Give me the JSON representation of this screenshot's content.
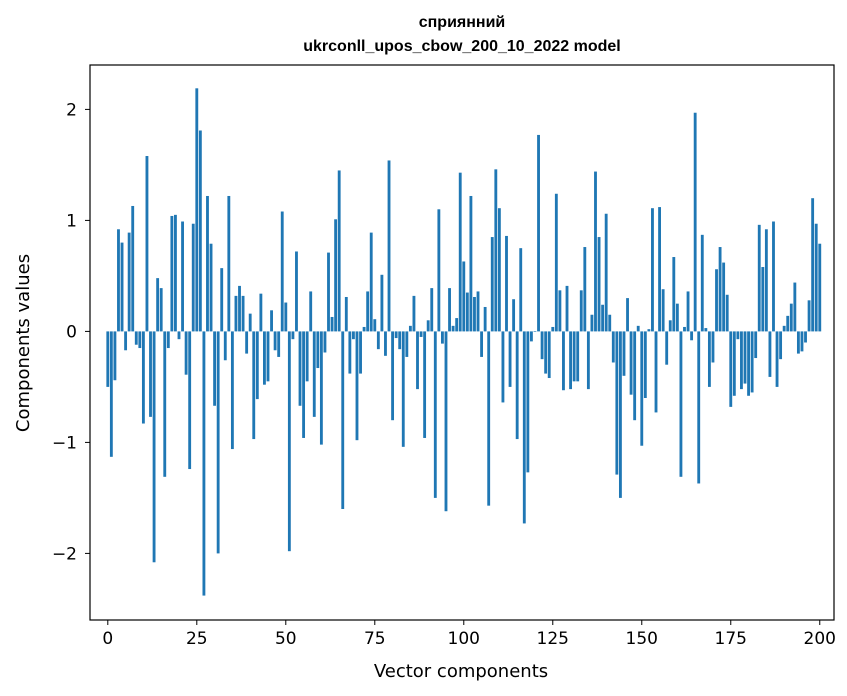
{
  "chart_data": {
    "type": "bar",
    "title": "сприянний",
    "subtitle": "ukrconll_upos_cbow_200_10_2022 model",
    "xlabel": "Vector components",
    "ylabel": "Components values",
    "xlim": [
      -5,
      204
    ],
    "ylim": [
      -2.6,
      2.4
    ],
    "x_ticks": [
      0,
      25,
      50,
      75,
      100,
      125,
      150,
      175,
      200
    ],
    "x_tick_labels": [
      "0",
      "25",
      "50",
      "75",
      "100",
      "125",
      "150",
      "175",
      "200"
    ],
    "y_ticks": [
      -2,
      -1,
      0,
      1,
      2
    ],
    "y_tick_labels": [
      "−2",
      "−1",
      "0",
      "1",
      "2"
    ],
    "grid": false,
    "bar_color": "#1f77b4",
    "values": [
      -0.5,
      -1.13,
      -0.44,
      0.92,
      0.8,
      -0.17,
      0.89,
      1.13,
      -0.12,
      -0.15,
      -0.83,
      1.58,
      -0.77,
      -2.08,
      0.48,
      0.39,
      -1.31,
      -0.15,
      1.04,
      1.05,
      -0.07,
      0.99,
      -0.39,
      -1.24,
      0.97,
      2.19,
      1.81,
      -2.38,
      1.22,
      0.79,
      -0.67,
      -2.0,
      0.57,
      -0.26,
      1.22,
      -1.06,
      0.32,
      0.41,
      0.32,
      -0.2,
      0.16,
      -0.97,
      -0.61,
      0.34,
      -0.48,
      -0.45,
      0.19,
      -0.17,
      -0.23,
      1.08,
      0.26,
      -1.98,
      -0.07,
      0.72,
      -0.67,
      -0.96,
      -0.45,
      0.36,
      -0.77,
      -0.33,
      -1.02,
      -0.19,
      0.71,
      0.13,
      1.01,
      1.45,
      -1.6,
      0.31,
      -0.38,
      -0.07,
      -0.98,
      -0.38,
      0.04,
      0.36,
      0.89,
      0.11,
      -0.16,
      0.51,
      -0.22,
      1.54,
      -0.8,
      -0.06,
      -0.16,
      -1.04,
      -0.23,
      0.05,
      0.32,
      -0.52,
      -0.05,
      -0.96,
      0.1,
      0.39,
      -1.5,
      1.1,
      -0.11,
      -1.62,
      0.39,
      0.05,
      0.12,
      1.43,
      0.63,
      0.35,
      1.22,
      0.31,
      0.36,
      -0.23,
      0.22,
      -1.57,
      0.85,
      1.46,
      1.11,
      -0.64,
      0.86,
      -0.5,
      0.29,
      -0.97,
      0.75,
      -1.73,
      -1.27,
      -0.09,
      0.0,
      1.77,
      -0.25,
      -0.38,
      -0.42,
      0.04,
      1.24,
      0.37,
      -0.53,
      0.41,
      -0.52,
      -0.45,
      -0.45,
      0.37,
      0.76,
      -0.52,
      0.15,
      1.44,
      0.85,
      0.24,
      1.06,
      0.15,
      -0.28,
      -1.29,
      -1.5,
      -0.4,
      0.3,
      -0.57,
      -0.8,
      0.05,
      -1.03,
      -0.6,
      0.02,
      1.11,
      -0.73,
      1.12,
      0.38,
      -0.3,
      0.1,
      0.67,
      0.25,
      -1.31,
      0.04,
      0.36,
      -0.08,
      1.97,
      -1.37,
      0.87,
      0.03,
      -0.5,
      -0.28,
      0.56,
      0.76,
      0.62,
      0.33,
      -0.68,
      -0.58,
      -0.07,
      -0.52,
      -0.47,
      -0.58,
      -0.55,
      -0.24,
      0.96,
      0.58,
      0.92,
      -0.41,
      0.99,
      -0.5,
      -0.25,
      0.05,
      0.14,
      0.25,
      0.44,
      -0.2,
      -0.18,
      -0.1,
      0.28,
      1.2,
      0.97,
      0.79
    ]
  }
}
